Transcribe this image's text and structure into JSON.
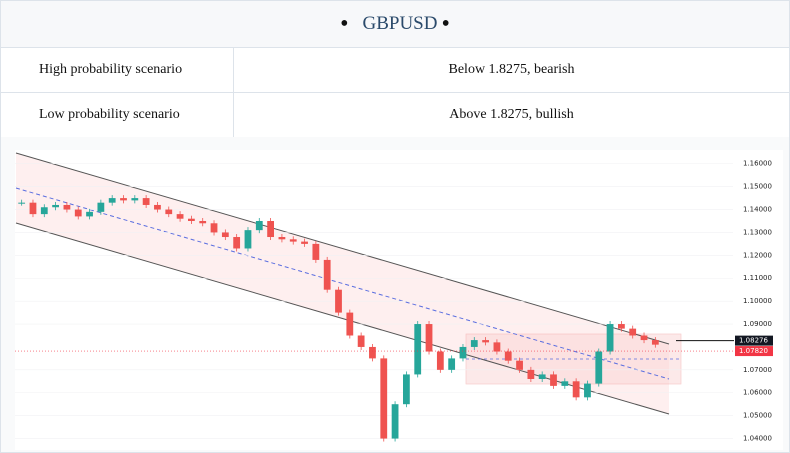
{
  "header": {
    "title": "GBPUSD"
  },
  "table": {
    "rows": [
      [
        "High probability scenario",
        "Below 1.8275, bearish"
      ],
      [
        "Low probability scenario",
        "Above 1.8275, bullish"
      ]
    ]
  },
  "chart_data": {
    "type": "candlestick",
    "values": [
      1.143,
      1.138,
      1.141,
      1.142,
      1.14,
      1.137,
      1.139,
      1.143,
      1.145,
      1.144,
      1.145,
      1.142,
      1.14,
      1.138,
      1.136,
      1.135,
      1.134,
      1.13,
      1.128,
      1.123,
      1.131,
      1.135,
      1.128,
      1.127,
      1.126,
      1.125,
      1.118,
      1.105,
      1.095,
      1.085,
      1.08,
      1.075,
      1.04,
      1.055,
      1.068,
      1.09,
      1.078,
      1.07,
      1.075,
      1.08,
      1.083,
      1.082,
      1.078,
      1.074,
      1.07,
      1.066,
      1.068,
      1.063,
      1.065,
      1.058,
      1.064,
      1.078,
      1.09,
      1.088,
      1.085,
      1.083,
      1.081
    ],
    "up_color": "#26a69a",
    "down_color": "#ef5350",
    "ylim": [
      1.035,
      1.166
    ],
    "yticks": [
      {
        "value": 1.16,
        "label": "1.16000"
      },
      {
        "value": 1.15,
        "label": "1.15000"
      },
      {
        "value": 1.14,
        "label": "1.14000"
      },
      {
        "value": 1.13,
        "label": "1.13000"
      },
      {
        "value": 1.12,
        "label": "1.12000"
      },
      {
        "value": 1.11,
        "label": "1.11000"
      },
      {
        "value": 1.1,
        "label": "1.10000"
      },
      {
        "value": 1.09,
        "label": "1.09000"
      },
      {
        "value": 1.07,
        "label": "1.07000"
      },
      {
        "value": 1.06,
        "label": "1.06000"
      },
      {
        "value": 1.05,
        "label": "1.05000"
      },
      {
        "value": 1.04,
        "label": "1.04000"
      }
    ],
    "markers": [
      {
        "value": 1.08276,
        "label": "1.08276",
        "color": "#131722"
      },
      {
        "value": 1.0782,
        "label": "1.07820",
        "color": "#f23645"
      }
    ],
    "grid": true
  }
}
